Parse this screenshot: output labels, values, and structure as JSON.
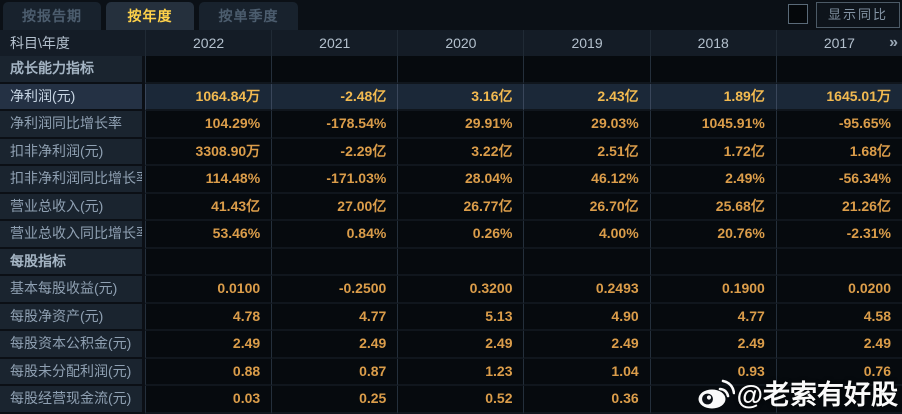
{
  "tabs": [
    {
      "label": "按报告期",
      "active": false
    },
    {
      "label": "按年度",
      "active": true
    },
    {
      "label": "按单季度",
      "active": false
    }
  ],
  "controls": {
    "show_yoy_label": "显示同比",
    "checkbox_checked": false
  },
  "table": {
    "corner_header": "科目\\年度",
    "year_columns": [
      "2022",
      "2021",
      "2020",
      "2019",
      "2018",
      "2017"
    ],
    "more_years_glyph": "»",
    "rows": [
      {
        "type": "section",
        "label": "成长能力指标",
        "values": [
          "",
          "",
          "",
          "",
          "",
          ""
        ]
      },
      {
        "type": "highlight",
        "label": "净利润(元)",
        "values": [
          "1064.84万",
          "-2.48亿",
          "3.16亿",
          "2.43亿",
          "1.89亿",
          "1645.01万"
        ]
      },
      {
        "type": "data",
        "label": "净利润同比增长率",
        "values": [
          "104.29%",
          "-178.54%",
          "29.91%",
          "29.03%",
          "1045.91%",
          "-95.65%"
        ]
      },
      {
        "type": "data",
        "label": "扣非净利润(元)",
        "values": [
          "3308.90万",
          "-2.29亿",
          "3.22亿",
          "2.51亿",
          "1.72亿",
          "1.68亿"
        ]
      },
      {
        "type": "data",
        "label": "扣非净利润同比增长率",
        "values": [
          "114.48%",
          "-171.03%",
          "28.04%",
          "46.12%",
          "2.49%",
          "-56.34%"
        ]
      },
      {
        "type": "data",
        "label": "营业总收入(元)",
        "values": [
          "41.43亿",
          "27.00亿",
          "26.77亿",
          "26.70亿",
          "25.68亿",
          "21.26亿"
        ]
      },
      {
        "type": "data",
        "label": "营业总收入同比增长率",
        "values": [
          "53.46%",
          "0.84%",
          "0.26%",
          "4.00%",
          "20.76%",
          "-2.31%"
        ]
      },
      {
        "type": "section",
        "label": "每股指标",
        "values": [
          "",
          "",
          "",
          "",
          "",
          ""
        ]
      },
      {
        "type": "data",
        "label": "基本每股收益(元)",
        "values": [
          "0.0100",
          "-0.2500",
          "0.3200",
          "0.2493",
          "0.1900",
          "0.0200"
        ]
      },
      {
        "type": "data",
        "label": "每股净资产(元)",
        "values": [
          "4.78",
          "4.77",
          "5.13",
          "4.90",
          "4.77",
          "4.58"
        ]
      },
      {
        "type": "data",
        "label": "每股资本公积金(元)",
        "values": [
          "2.49",
          "2.49",
          "2.49",
          "2.49",
          "2.49",
          "2.49"
        ]
      },
      {
        "type": "data",
        "label": "每股未分配利润(元)",
        "values": [
          "0.88",
          "0.87",
          "1.23",
          "1.04",
          "0.93",
          "0.76"
        ]
      },
      {
        "type": "data",
        "label": "每股经营现金流(元)",
        "values": [
          "0.03",
          "0.25",
          "0.52",
          "0.36",
          "",
          ""
        ]
      }
    ]
  },
  "watermark": {
    "icon": "weibo-icon",
    "text": "@老索有好股"
  },
  "colors": {
    "active_tab_text": "#ffd24a",
    "value_gold": "#db9d4a",
    "highlight_value_gold": "#f2ba50",
    "highlight_row_bg": "#1b2838",
    "label_column_bg": "#1a242f",
    "header_bg": "#141c26",
    "watermark_text": "#fafafa"
  }
}
